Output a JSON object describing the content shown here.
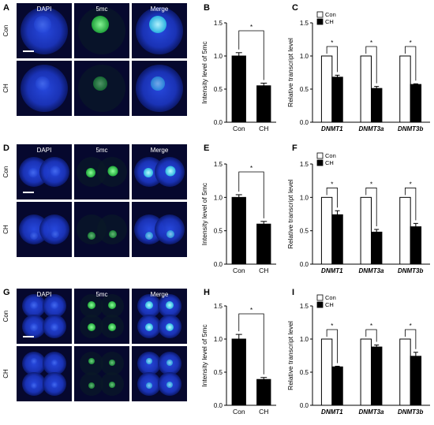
{
  "panel_labels": [
    "A",
    "B",
    "C",
    "D",
    "E",
    "F",
    "G",
    "H",
    "I"
  ],
  "micrograph_columns": [
    "DAPI",
    "5mc",
    "Merge"
  ],
  "micrograph_rows": [
    "Con",
    "CH"
  ],
  "colors": {
    "nucleus_blue": "#1f3fd6",
    "background_blue": "#06082e",
    "methyl_green": "#3bd65a",
    "merge_cyan": "#4fd6e8",
    "bar_black": "#000000",
    "bar_white": "#ffffff"
  },
  "image_stages": [
    {
      "panel": "A",
      "stage": "one-cell"
    },
    {
      "panel": "D",
      "stage": "two-cell"
    },
    {
      "panel": "G",
      "stage": "four-cell"
    }
  ],
  "chart_data": [
    {
      "panel": "B",
      "type": "bar",
      "categories": [
        "Con",
        "CH"
      ],
      "values": [
        1.0,
        0.55
      ],
      "errors": [
        0.05,
        0.04
      ],
      "bar_fills": [
        "black",
        "black"
      ],
      "ylabel": "Intensity level of 5mc",
      "ylim": [
        0,
        1.5
      ],
      "yticks": [
        "0.0",
        "0.5",
        "1.0",
        "1.5"
      ],
      "significance": [
        "*"
      ]
    },
    {
      "panel": "C",
      "type": "bar",
      "categories": [
        "DNMT1",
        "DNMT3a",
        "DNMT3b"
      ],
      "series": [
        {
          "name": "Con",
          "values": [
            1.0,
            1.0,
            1.0
          ],
          "errors": [
            0.0,
            0.0,
            0.0
          ]
        },
        {
          "name": "CH",
          "values": [
            0.68,
            0.51,
            0.57
          ],
          "errors": [
            0.03,
            0.03,
            0.01
          ]
        }
      ],
      "ylabel": "Relative transcript level",
      "ylim": [
        0,
        1.5
      ],
      "yticks": [
        "0.0",
        "0.5",
        "1.0",
        "1.5"
      ],
      "legend": "top-left",
      "significance": [
        "*",
        "*",
        "*"
      ]
    },
    {
      "panel": "E",
      "type": "bar",
      "categories": [
        "Con",
        "CH"
      ],
      "values": [
        1.0,
        0.6
      ],
      "errors": [
        0.04,
        0.04
      ],
      "bar_fills": [
        "black",
        "black"
      ],
      "ylabel": "Intensity level of 5mc",
      "ylim": [
        0,
        1.5
      ],
      "yticks": [
        "0.0",
        "0.5",
        "1.0",
        "1.5"
      ],
      "significance": [
        "*"
      ]
    },
    {
      "panel": "F",
      "type": "bar",
      "categories": [
        "DNMT1",
        "DNMT3a",
        "DNMT3b"
      ],
      "series": [
        {
          "name": "Con",
          "values": [
            1.0,
            1.0,
            1.0
          ],
          "errors": [
            0.0,
            0.0,
            0.0
          ]
        },
        {
          "name": "CH",
          "values": [
            0.74,
            0.48,
            0.56
          ],
          "errors": [
            0.06,
            0.04,
            0.05
          ]
        }
      ],
      "ylabel": "Relative transcript level",
      "ylim": [
        0,
        1.5
      ],
      "yticks": [
        "0.0",
        "0.5",
        "1.0",
        "1.5"
      ],
      "legend": "top-left",
      "significance": [
        "*",
        "*",
        "*"
      ]
    },
    {
      "panel": "H",
      "type": "bar",
      "categories": [
        "Con",
        "CH"
      ],
      "values": [
        1.0,
        0.39
      ],
      "errors": [
        0.07,
        0.03
      ],
      "bar_fills": [
        "black",
        "black"
      ],
      "ylabel": "Intensity level of 5mc",
      "ylim": [
        0,
        1.5
      ],
      "yticks": [
        "0.0",
        "0.5",
        "1.0",
        "1.5"
      ],
      "significance": [
        "*"
      ]
    },
    {
      "panel": "I",
      "type": "bar",
      "categories": [
        "DNMT1",
        "DNMT3a",
        "DNMT3b"
      ],
      "series": [
        {
          "name": "Con",
          "values": [
            1.0,
            1.0,
            1.0
          ],
          "errors": [
            0.0,
            0.0,
            0.0
          ]
        },
        {
          "name": "CH",
          "values": [
            0.58,
            0.88,
            0.74
          ],
          "errors": [
            0.01,
            0.03,
            0.06
          ]
        }
      ],
      "ylabel": "Relative transcript level",
      "ylim": [
        0,
        1.5
      ],
      "yticks": [
        "0.0",
        "0.5",
        "1.0",
        "1.5"
      ],
      "legend": "top-left",
      "significance": [
        "*",
        "*",
        "*"
      ]
    }
  ]
}
